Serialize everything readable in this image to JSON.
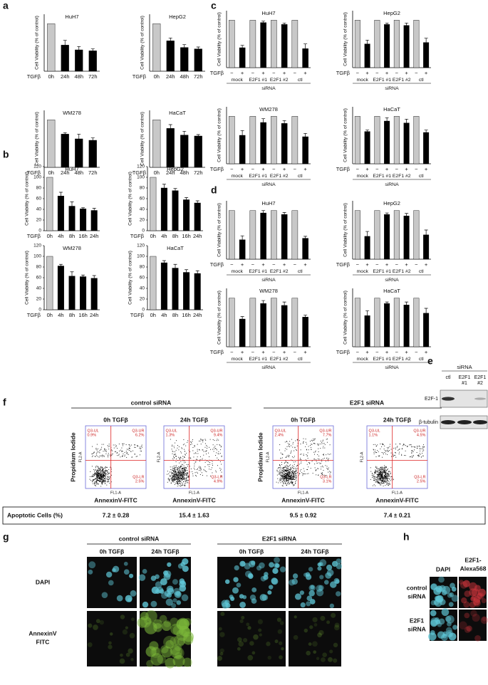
{
  "panel_a": {
    "label": "a",
    "y_label": "Cell Viability (% of control)",
    "x_title": "TGFβ",
    "categories": [
      "0h",
      "24h",
      "48h",
      "72h"
    ],
    "ylim": [
      0,
      120
    ],
    "colors": [
      "#c8c8c8",
      "#000000"
    ],
    "charts": [
      {
        "title": "HuH7",
        "values": [
          100,
          55,
          45,
          43
        ],
        "errors": [
          null,
          10,
          7,
          4
        ]
      },
      {
        "title": "HepG2",
        "values": [
          100,
          64,
          50,
          47
        ],
        "errors": [
          null,
          6,
          6,
          4
        ]
      },
      {
        "title": "WM278",
        "values": [
          100,
          70,
          60,
          57
        ],
        "errors": [
          null,
          3,
          10,
          5
        ]
      },
      {
        "title": "HaCaT",
        "values": [
          100,
          82,
          68,
          66
        ],
        "errors": [
          null,
          8,
          8,
          3
        ]
      }
    ]
  },
  "panel_b": {
    "label": "b",
    "y_label": "Cell Viability (% of control)",
    "x_title": "TGFβ",
    "categories": [
      "0h",
      "4h",
      "8h",
      "16h",
      "24h"
    ],
    "ylim": [
      0,
      120
    ],
    "yticks": [
      0,
      20,
      40,
      60,
      80,
      100,
      120
    ],
    "colors": [
      "#c8c8c8",
      "#000000"
    ],
    "charts": [
      {
        "title": "HuH7",
        "values": [
          100,
          65,
          46,
          41,
          38
        ],
        "errors": [
          null,
          7,
          8,
          2,
          4
        ]
      },
      {
        "title": "HepG2",
        "values": [
          100,
          80,
          75,
          58,
          52
        ],
        "errors": [
          null,
          7,
          4,
          4,
          4
        ]
      },
      {
        "title": "WM278",
        "values": [
          100,
          82,
          63,
          62,
          59
        ],
        "errors": [
          null,
          3,
          8,
          3,
          5
        ]
      },
      {
        "title": "HaCaT",
        "values": [
          100,
          88,
          78,
          70,
          68
        ],
        "errors": [
          null,
          4,
          7,
          5,
          5
        ]
      }
    ]
  },
  "panel_c": {
    "label": "c",
    "y_label": "Cell Viability (% of control)",
    "x_title": "TGFβ",
    "signs": [
      "−",
      "+"
    ],
    "groups": [
      "mock",
      "E2F1 #1",
      "E2F1 #2",
      "ctl"
    ],
    "group_title": "siRNA",
    "ylim": [
      0,
      120
    ],
    "colors": [
      "#c8c8c8",
      "#000000"
    ],
    "charts": [
      {
        "title": "HuH7",
        "values": [
          100,
          42,
          100,
          95,
          100,
          91,
          100,
          40
        ],
        "errors": [
          null,
          5,
          null,
          3,
          null,
          3,
          null,
          10
        ]
      },
      {
        "title": "HepG2",
        "values": [
          100,
          50,
          100,
          91,
          100,
          89,
          100,
          53
        ],
        "errors": [
          null,
          8,
          null,
          3,
          null,
          5,
          null,
          9
        ]
      },
      {
        "title": "WM278",
        "values": [
          100,
          60,
          100,
          87,
          100,
          85,
          100,
          57
        ],
        "errors": [
          null,
          10,
          null,
          8,
          null,
          6,
          null,
          7
        ]
      },
      {
        "title": "HaCaT",
        "values": [
          100,
          68,
          100,
          90,
          100,
          86,
          100,
          66
        ],
        "errors": [
          null,
          3,
          null,
          7,
          null,
          8,
          null,
          5
        ]
      }
    ]
  },
  "panel_d": {
    "label": "d",
    "y_label": "Cell Viability (% of control)",
    "x_title": "TGFβ",
    "signs": [
      "−",
      "+"
    ],
    "groups": [
      "mock",
      "E2F1 #1",
      "E2F1 #2",
      "ctl"
    ],
    "group_title": "siRNA",
    "ylim": [
      0,
      120
    ],
    "colors": [
      "#c8c8c8",
      "#000000"
    ],
    "charts": [
      {
        "title": "HuH7",
        "values": [
          100,
          40,
          100,
          95,
          100,
          92,
          100,
          43
        ],
        "errors": [
          null,
          8,
          null,
          5,
          null,
          4,
          null,
          4
        ]
      },
      {
        "title": "HepG2",
        "values": [
          100,
          47,
          100,
          92,
          100,
          89,
          100,
          50
        ],
        "errors": [
          null,
          10,
          null,
          3,
          null,
          5,
          null,
          10
        ]
      },
      {
        "title": "WM278",
        "values": [
          100,
          57,
          100,
          89,
          100,
          85,
          100,
          61
        ],
        "errors": [
          null,
          5,
          null,
          6,
          null,
          7,
          null,
          4
        ]
      },
      {
        "title": "HaCaT",
        "values": [
          100,
          64,
          100,
          89,
          100,
          86,
          100,
          69
        ],
        "errors": [
          null,
          10,
          null,
          3,
          null,
          6,
          null,
          10
        ]
      }
    ]
  },
  "panel_e": {
    "label": "e",
    "group_title": "siRNA",
    "lanes": [
      [
        "ctl"
      ],
      [
        "E2F1",
        "#1"
      ],
      [
        "E2F1",
        "#2"
      ]
    ],
    "rows": [
      "E2F-1",
      "β-tubulin"
    ]
  },
  "panel_f": {
    "label": "f",
    "groups": [
      "control siRNA",
      "E2F1 siRNA"
    ],
    "columns": [
      "0h TGFβ",
      "24h TGFβ"
    ],
    "y_label": "Propidium Iodide",
    "x_label": "AnnexinV-FITC",
    "y_channel": "FL2-A",
    "x_channel": "FL1-A",
    "plots": [
      [
        [
          "Q3-UL",
          "0.9%"
        ],
        [
          "Q3-UR",
          "6.2%"
        ],
        [
          "Q3-LR",
          "2.5%"
        ]
      ],
      [
        [
          "Q3-UL",
          "1.3%"
        ],
        [
          "Q3-UR",
          "9.4%"
        ],
        [
          "Q3-LR",
          "4.9%"
        ]
      ],
      [
        [
          "Q3-UL",
          "2.4%"
        ],
        [
          "Q3-UR",
          "7.7%"
        ],
        [
          "Q3-LR",
          "3.1%"
        ]
      ],
      [
        [
          "Q3-UL",
          "1.1%"
        ],
        [
          "Q3-UR",
          "4.5%"
        ],
        [
          "Q3-LR",
          "2.5%"
        ]
      ]
    ],
    "row_label": "Apoptotic Cells (%)",
    "apoptotic": [
      "7.2 ± 0.28",
      "15.4 ± 1.63",
      "9.5 ± 0.92",
      "7.4 ± 0.21"
    ]
  },
  "panel_g": {
    "label": "g",
    "groups": [
      "control siRNA",
      "E2F1 siRNA"
    ],
    "columns": [
      "0h TGFβ",
      "24h TGFβ"
    ],
    "rows": [
      [
        "DAPI"
      ],
      [
        "AnnexinV",
        "FITC"
      ]
    ]
  },
  "panel_h": {
    "label": "h",
    "columns": [
      [
        "DAPI"
      ],
      [
        "E2F1-",
        "Alexa568"
      ]
    ],
    "rows": [
      [
        "control",
        "siRNA"
      ],
      [
        "E2F1",
        "siRNA"
      ]
    ]
  }
}
